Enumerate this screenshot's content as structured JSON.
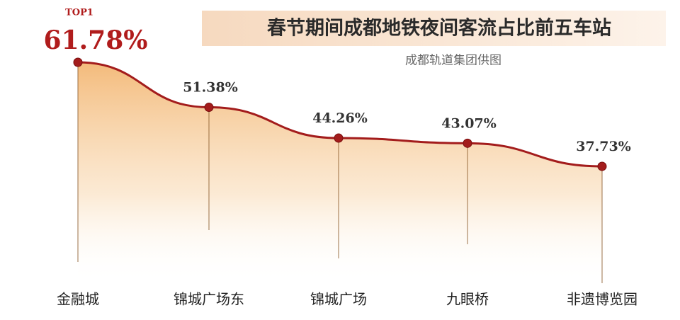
{
  "chart_data": {
    "type": "line",
    "title": "春节期间成都地铁夜间客流占比前五车站",
    "subtitle": "成都轨道集团供图",
    "annotation": "TOP1",
    "categories": [
      "金融城",
      "锦城广场东",
      "锦城广场",
      "九眼桥",
      "非遗博览园"
    ],
    "values": [
      61.78,
      51.38,
      44.26,
      43.07,
      37.73
    ],
    "value_labels": [
      "61.78%",
      "51.38%",
      "44.26%",
      "43.07%",
      "37.73%"
    ],
    "color": "#a31c1c"
  }
}
